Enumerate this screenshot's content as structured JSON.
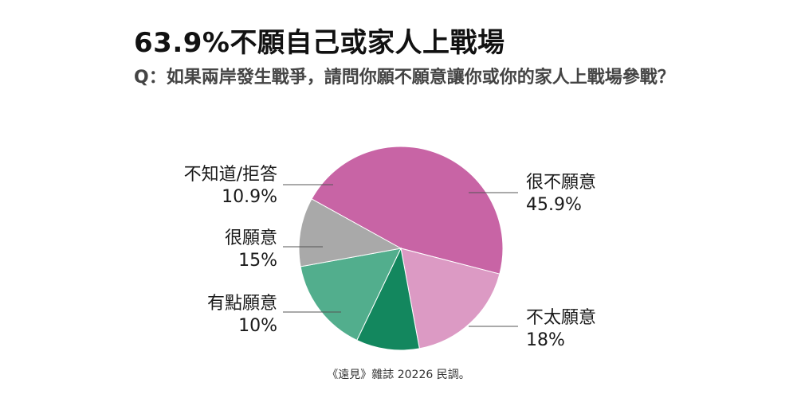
{
  "chart_data": {
    "type": "pie",
    "title": "63.9%不願自己或家人上戰場",
    "subtitle": "Q：如果兩岸發生戰爭，請問你願不願意讓你或你的家人上戰場參戰？",
    "slices": [
      {
        "label": "很不願意",
        "value": 45.9,
        "value_label": "45.9%",
        "color": "#c864a5"
      },
      {
        "label": "不太願意",
        "value": 18,
        "value_label": "18%",
        "color": "#dc9ac4"
      },
      {
        "label": "有點願意",
        "value": 10,
        "value_label": "10%",
        "color": "#13875e"
      },
      {
        "label": "很願意",
        "value": 15,
        "value_label": "15%",
        "color": "#52ae8d"
      },
      {
        "label": "不知道/拒答",
        "value": 10.9,
        "value_label": "10.9%",
        "color": "#a9a9a9"
      }
    ],
    "source": "《遠見》雜誌 20226 民調。"
  }
}
